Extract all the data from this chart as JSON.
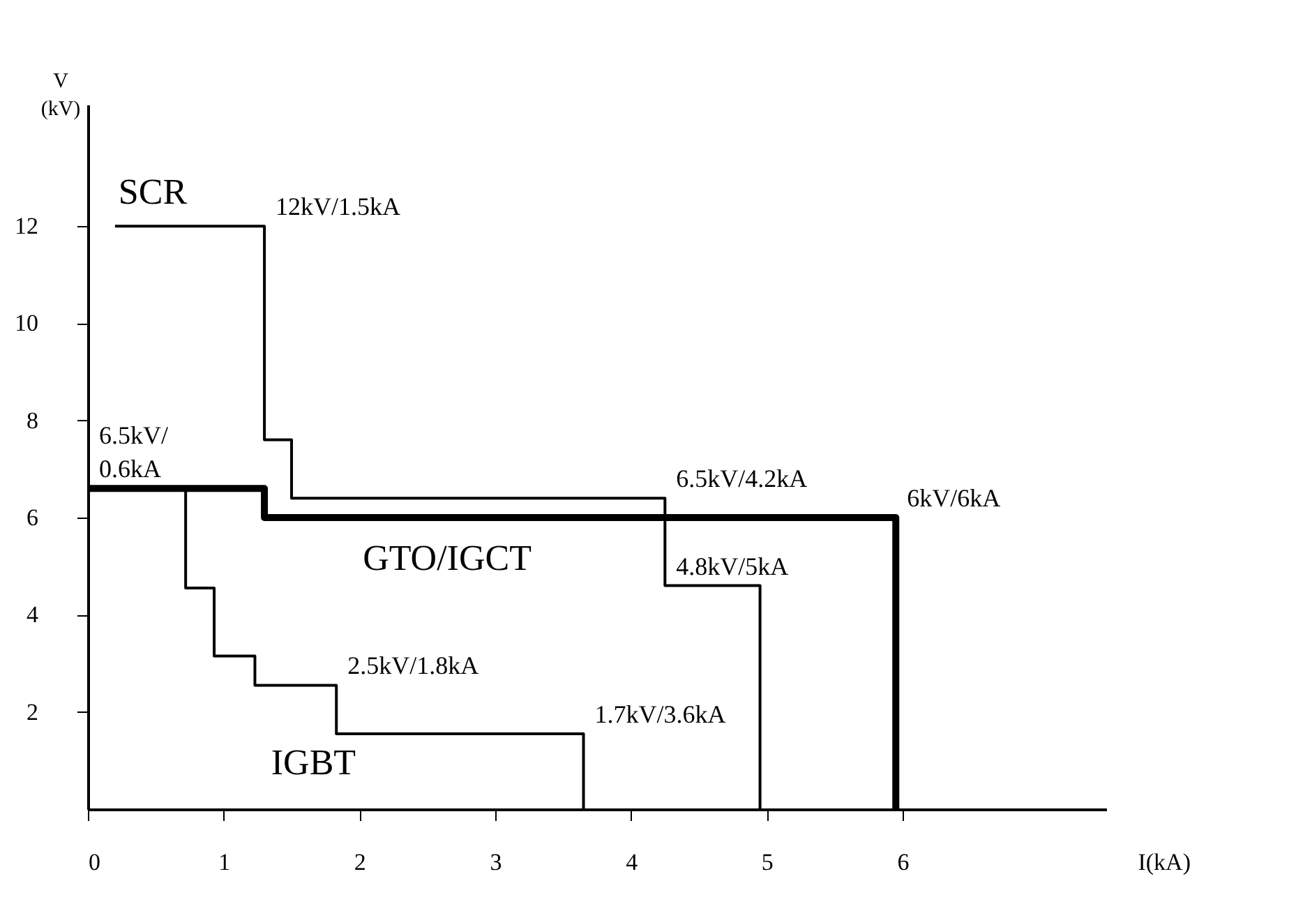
{
  "chart_data": {
    "type": "line",
    "xlabel": "I(kA)",
    "ylabel": "V\n(kV)",
    "xlim": [
      0,
      7.5
    ],
    "ylim": [
      0,
      14.5
    ],
    "xticks": [
      0,
      1,
      2,
      3,
      4,
      5,
      6
    ],
    "yticks": [
      2,
      4,
      6,
      8,
      10,
      12
    ],
    "marker": "none",
    "line_style": "solid",
    "series": [
      {
        "color": "#000000",
        "x": [
          0.2,
          1.3,
          1.3,
          1.5,
          1.5,
          4.25,
          4.25,
          4.95,
          4.95
        ],
        "values": [
          12,
          12,
          7.6,
          7.6,
          6.4,
          6.4,
          4.6,
          4.6,
          0
        ]
      },
      {
        "color": "#000000",
        "x": [
          0,
          1.3,
          1.3,
          5.95,
          5.95
        ],
        "values": [
          6.6,
          6.6,
          6.0,
          6.0,
          0
        ]
      },
      {
        "color": "#000000",
        "x": [
          0.72,
          0.72,
          0.93,
          0.93,
          1.23,
          1.23,
          1.83,
          1.83,
          3.65,
          3.65
        ],
        "values": [
          6.6,
          4.55,
          4.55,
          3.15,
          3.15,
          2.55,
          2.55,
          1.55,
          1.55,
          0
        ]
      }
    ],
    "annotations": [
      "SCR",
      {
        "text": "12kV/1.5kA",
        "x": 1.3,
        "y": 12
      },
      {
        "text": "6.5kV/\n0.6kA",
        "x": 0,
        "y": 6.6
      },
      {
        "text": "6.5kV/4.2kA",
        "x": 4.25,
        "y": 6.4
      },
      {
        "text": "6kV/6kA",
        "x": 5.95,
        "y": 6.0
      },
      "GTO/IGCT",
      {
        "text": "4.8kV/5kA",
        "x": 4.25,
        "y": 4.6
      },
      {
        "text": "2.5kV/1.8kA",
        "x": 1.83,
        "y": 2.55
      },
      {
        "text": "1.7kV/3.6kA",
        "x": 3.65,
        "y": 1.55
      },
      "IGBT"
    ]
  }
}
